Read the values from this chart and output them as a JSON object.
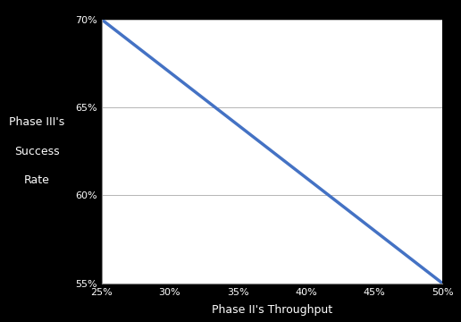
{
  "x_values": [
    0.25,
    0.5
  ],
  "y_values": [
    0.7,
    0.55
  ],
  "x_ticks": [
    0.25,
    0.3,
    0.35,
    0.4,
    0.45,
    0.5
  ],
  "y_ticks": [
    0.55,
    0.6,
    0.65,
    0.7
  ],
  "x_tick_labels": [
    "25%",
    "30%",
    "35%",
    "40%",
    "45%",
    "50%"
  ],
  "y_tick_labels": [
    "55%",
    "60%",
    "65%",
    "70%"
  ],
  "xlabel": "Phase II's Throughput",
  "ylabel_line1": "Phase III's",
  "ylabel_line2": "Success",
  "ylabel_line3": "Rate",
  "line_color": "#4472C4",
  "line_width": 2.5,
  "figure_bg": "#000000",
  "axes_bg": "#ffffff",
  "text_color": "#ffffff",
  "tick_label_color": "#ffffff",
  "xlim": [
    0.25,
    0.5
  ],
  "ylim": [
    0.55,
    0.7
  ],
  "grid_color": "#AAAAAA",
  "spine_color": "#888888",
  "font_size_ticks": 8,
  "font_size_label": 9
}
